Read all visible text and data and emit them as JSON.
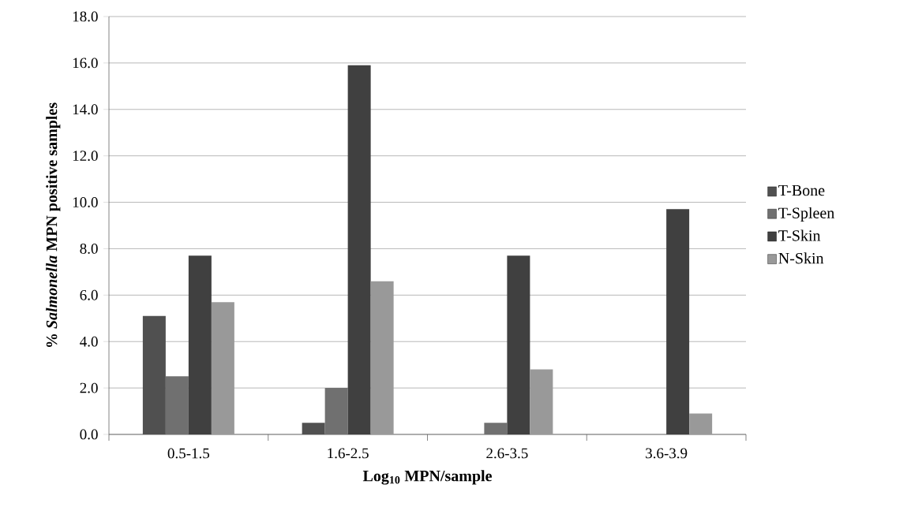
{
  "chart_data": {
    "type": "bar",
    "xlabel": "Log$_{10}$ MPN/sample",
    "ylabel": "% *Salmonella* MPN positive samples",
    "categories": [
      "0.5-1.5",
      "1.6-2.5",
      "2.6-3.5",
      "3.6-3.9"
    ],
    "series": [
      {
        "name": "T-Bone",
        "color": "#505050",
        "values": [
          5.1,
          0.5,
          0,
          0
        ]
      },
      {
        "name": "T-Spleen",
        "color": "#707070",
        "values": [
          2.5,
          2.0,
          0.5,
          0
        ]
      },
      {
        "name": "T-Skin",
        "color": "#404040",
        "values": [
          7.7,
          15.9,
          7.7,
          9.7
        ]
      },
      {
        "name": "N-Skin",
        "color": "#999999",
        "values": [
          5.7,
          6.6,
          2.8,
          0.9
        ]
      }
    ],
    "ylim": [
      0,
      18
    ],
    "yticks": [
      {
        "value": 0,
        "label": "0.0"
      },
      {
        "value": 2,
        "label": "2.0"
      },
      {
        "value": 4,
        "label": "4.0"
      },
      {
        "value": 6,
        "label": "6.0"
      },
      {
        "value": 8,
        "label": "8.0"
      },
      {
        "value": 10,
        "label": "10.0"
      },
      {
        "value": 12,
        "label": "12.0"
      },
      {
        "value": 14,
        "label": "14.0"
      },
      {
        "value": 16,
        "label": "16.0"
      },
      {
        "value": 18,
        "label": "18.0"
      }
    ],
    "grid": "y",
    "legend": "right"
  }
}
